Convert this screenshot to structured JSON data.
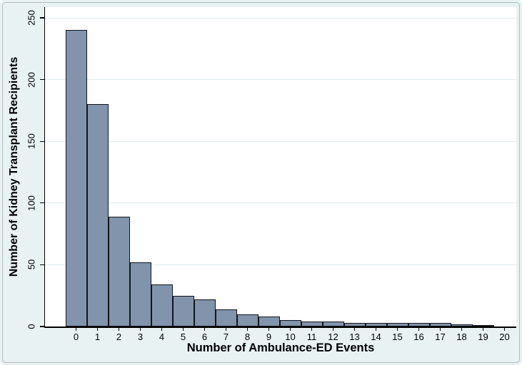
{
  "chart_data": {
    "type": "bar",
    "title": "",
    "xlabel": "Number of Ambulance-ED Events",
    "ylabel": "Number of Kidney Transplant Recipients",
    "categories": [
      0,
      1,
      2,
      3,
      4,
      5,
      6,
      7,
      8,
      9,
      10,
      11,
      12,
      13,
      14,
      15,
      16,
      17,
      18,
      19,
      20
    ],
    "values": [
      240,
      180,
      89,
      52,
      34,
      25,
      22,
      14,
      10,
      8,
      5,
      4,
      4,
      3,
      3,
      3,
      3,
      3,
      2,
      1,
      0
    ],
    "ylim": [
      0,
      250
    ],
    "yticks": [
      0,
      50,
      100,
      150,
      200,
      250
    ],
    "grid": true,
    "legend": "none",
    "colors": {
      "bar_fill": "#8194ab",
      "bar_border": "#14141a",
      "figure_background": "#e8f2f3",
      "plot_background": "#ffffff",
      "gridline": "#dfebee",
      "axis": "#000000",
      "text": "#000000"
    }
  }
}
